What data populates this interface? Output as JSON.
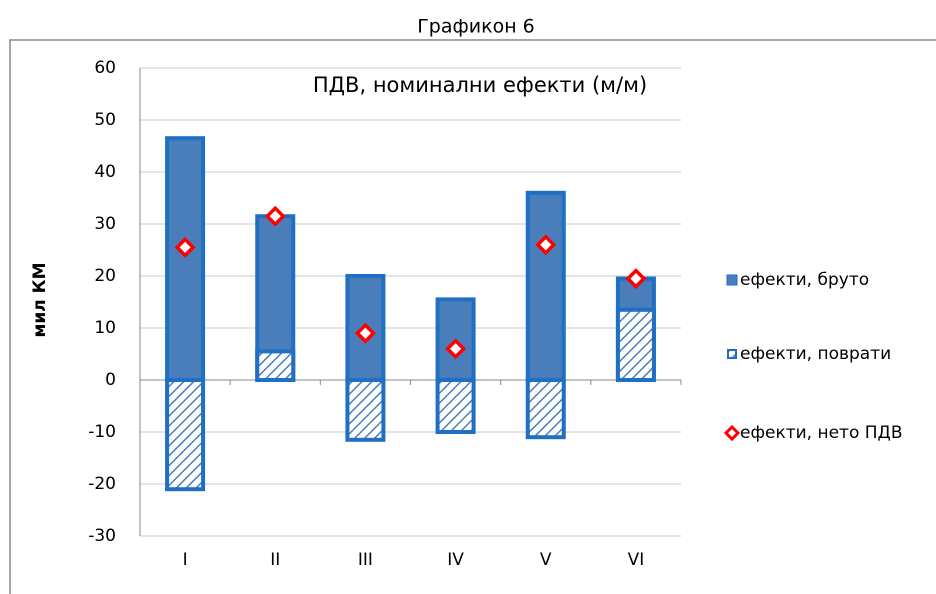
{
  "chart_data": {
    "type": "bar",
    "title": "Графикон 6",
    "subtitle": "ПДВ, номинални ефекти (м/м)",
    "y_label": "мил КМ",
    "categories": [
      "I",
      "II",
      "III",
      "IV",
      "V",
      "VI"
    ],
    "series": [
      {
        "name": "ефекти, бруто",
        "color": "#4a7ebb",
        "values": [
          46.5,
          31.5,
          20,
          15.5,
          36,
          19.5
        ]
      },
      {
        "name": "ефекти, поврати",
        "color": "#1f6fc4",
        "values": [
          -21,
          5.5,
          -11.5,
          -10,
          -11,
          13.5
        ]
      },
      {
        "name": "ефекти, нето ПДВ",
        "color": "#ff0000",
        "values": [
          25.5,
          31.5,
          9,
          6,
          26,
          19.5
        ]
      }
    ],
    "ylim": [
      -30,
      60
    ],
    "yticks": [
      -30,
      -20,
      -10,
      0,
      10,
      20,
      30,
      40,
      50,
      60
    ],
    "grid": true,
    "legend": "right"
  }
}
